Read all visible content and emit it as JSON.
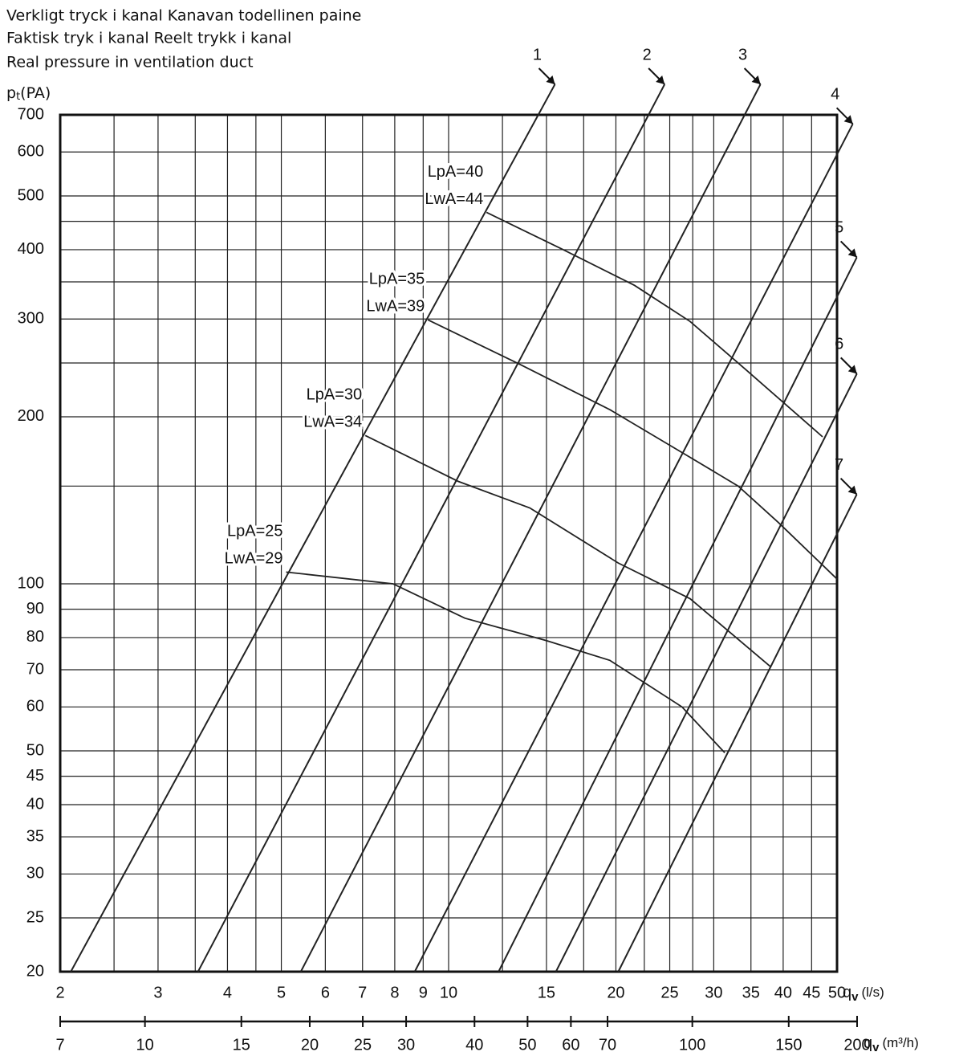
{
  "header": {
    "lines": [
      "Verkligt tryck i kanal  Kanavan todellinen paine",
      "Faktisk tryk i kanal    Reelt trykk i kanal",
      "Real pressure in ventilation duct"
    ]
  },
  "chart_data": {
    "type": "line",
    "y_label": "p",
    "y_label_sub": "t",
    "y_label_unit": "(PA)",
    "x_label": "q",
    "x_label_sub": "v",
    "x_label_unit": "(l/s)",
    "x2_label": "q",
    "x2_label_sub": "v",
    "x2_label_unit": "(m³/h)",
    "log_x": true,
    "log_y": true,
    "grid": true,
    "xlim": [
      2,
      50
    ],
    "ylim": [
      20,
      700
    ],
    "x2lim": [
      7,
      200
    ],
    "xticks": [
      2,
      3,
      4,
      5,
      6,
      7,
      8,
      9,
      10,
      15,
      20,
      25,
      30,
      35,
      40,
      45,
      50
    ],
    "x_minor_grid": [
      2.5,
      3.5,
      4.5,
      12.5,
      17.5,
      22.5,
      27.5
    ],
    "yticks": [
      20,
      25,
      30,
      35,
      40,
      45,
      50,
      60,
      70,
      80,
      90,
      100,
      200,
      300,
      400,
      500,
      600,
      700
    ],
    "y_minor_grid": [
      150,
      250,
      350,
      450
    ],
    "x2ticks": [
      7,
      10,
      15,
      20,
      25,
      30,
      40,
      50,
      60,
      70,
      100,
      150,
      200
    ],
    "color": "#222222",
    "series": [
      {
        "name": "1",
        "x": [
          2.09,
          14.5
        ],
        "values": [
          20,
          700
        ]
      },
      {
        "name": "2",
        "x": [
          3.54,
          22.9
        ],
        "values": [
          20,
          700
        ]
      },
      {
        "name": "3",
        "x": [
          5.42,
          34.1
        ],
        "values": [
          20,
          700
        ]
      },
      {
        "name": "4",
        "x": [
          8.69,
          50
        ],
        "values": [
          20,
          594
        ]
      },
      {
        "name": "5",
        "x": [
          12.3,
          50
        ],
        "values": [
          20,
          329
        ]
      },
      {
        "name": "6",
        "x": [
          15.6,
          50
        ],
        "values": [
          20,
          203
        ]
      },
      {
        "name": "7",
        "x": [
          20.2,
          50
        ],
        "values": [
          20,
          123
        ]
      }
    ],
    "noise_curves": [
      {
        "lpa": "LpA=25",
        "lwa": "LwA=29",
        "x": [
          5.1,
          7.94,
          10.7,
          15.0,
          19.5,
          26.3,
          31.4
        ],
        "values": [
          105,
          100,
          86.7,
          79,
          72.8,
          60,
          49.6
        ]
      },
      {
        "lpa": "LpA=30",
        "lwa": "LwA=34",
        "x": [
          7.08,
          10.4,
          14.0,
          20.2,
          27.2,
          37.9
        ],
        "values": [
          185,
          153,
          137,
          109,
          94,
          71
        ]
      },
      {
        "lpa": "LpA=35",
        "lwa": "LwA=39",
        "x": [
          9.18,
          13.5,
          19.5,
          27.2,
          33.2,
          39.2,
          50
        ],
        "values": [
          299,
          248,
          206,
          169,
          150,
          129,
          102
        ]
      },
      {
        "lpa": "LpA=40",
        "lwa": "LwA=44",
        "x": [
          11.7,
          16.0,
          21.6,
          27.2,
          34.3,
          47.1
        ],
        "values": [
          467,
          401,
          345,
          297,
          243,
          184
        ]
      }
    ]
  }
}
